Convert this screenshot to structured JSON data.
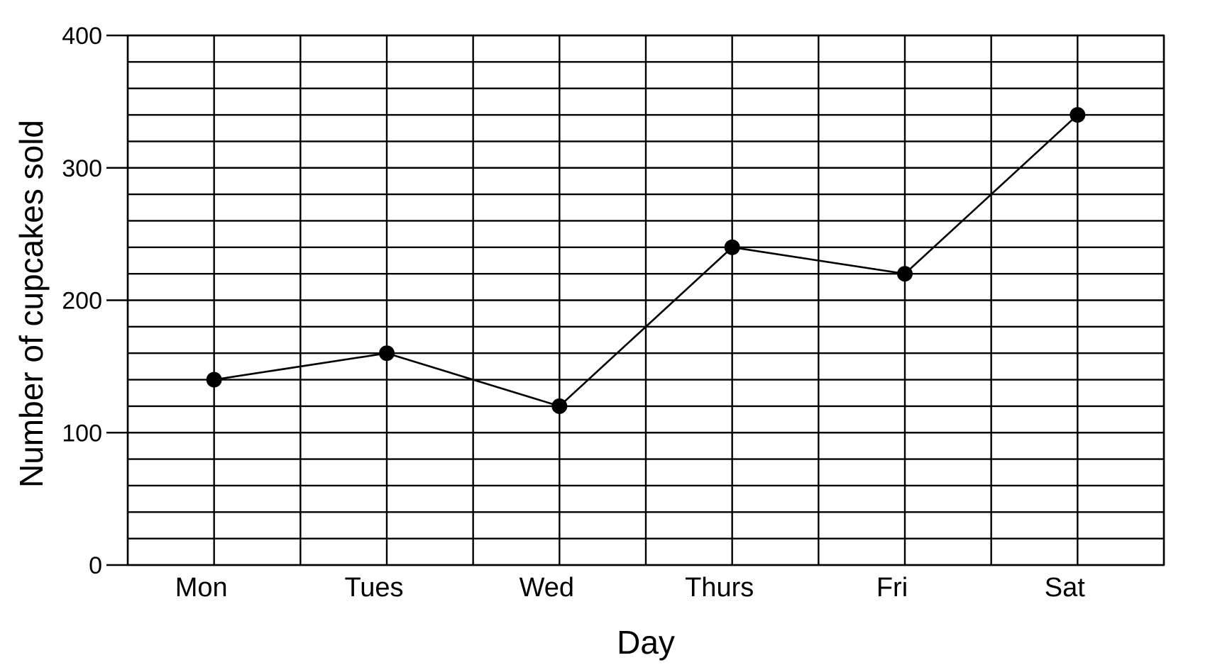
{
  "chart_data": {
    "type": "line",
    "title": "",
    "xlabel": "Day",
    "ylabel": "Number of cupcakes sold",
    "categories": [
      "Mon",
      "Tues",
      "Wed",
      "Thurs",
      "Fri",
      "Sat"
    ],
    "series": [
      {
        "values": [
          140,
          160,
          120,
          240,
          220,
          340
        ]
      }
    ],
    "ylim": [
      0,
      400
    ],
    "yticks": [
      0,
      100,
      200,
      300,
      400
    ],
    "y_minor_step": 20,
    "grid": true,
    "colors": {
      "line": "#000000",
      "marker": "#000000",
      "grid": "#000000"
    }
  }
}
